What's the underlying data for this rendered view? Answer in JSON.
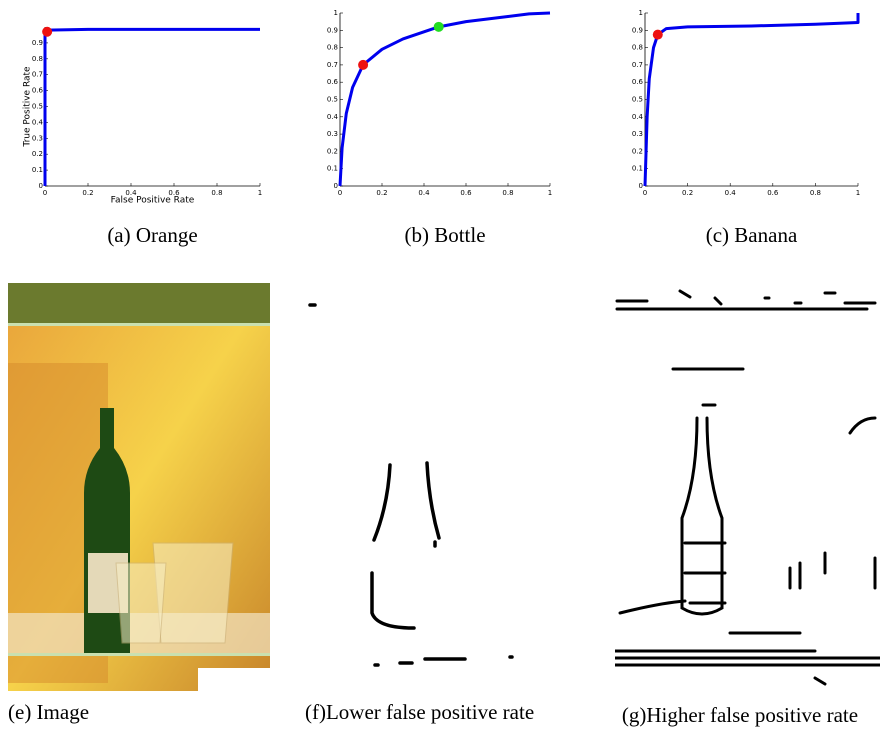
{
  "chart_data": [
    {
      "type": "line",
      "caption": "(a) Orange",
      "x_label": "False Positive Rate",
      "y_label": "True Positive Rate",
      "x": [
        0,
        0,
        0.01,
        0.2,
        0.5,
        0.8,
        1
      ],
      "series": [
        {
          "color": "#0000ee",
          "values": [
            0,
            0.97,
            0.98,
            0.985,
            0.985,
            0.985,
            0.985
          ]
        }
      ],
      "points": [
        {
          "x": 0.01,
          "y": 0.97,
          "color": "#ee1111"
        }
      ],
      "xlim": [
        0,
        1
      ],
      "ylim": [
        0,
        1
      ],
      "xticks": [
        0,
        0.2,
        0.4,
        0.6,
        0.8,
        1
      ],
      "yticks": [
        0,
        0.1,
        0.2,
        0.3,
        0.4,
        0.5,
        0.6,
        0.7,
        0.8,
        0.9
      ]
    },
    {
      "type": "line",
      "caption": "(b) Bottle",
      "x": [
        0,
        0.01,
        0.03,
        0.06,
        0.11,
        0.2,
        0.3,
        0.47,
        0.6,
        0.8,
        0.9,
        1
      ],
      "series": [
        {
          "color": "#0000ee",
          "values": [
            0,
            0.22,
            0.42,
            0.57,
            0.7,
            0.79,
            0.85,
            0.92,
            0.95,
            0.98,
            0.995,
            1
          ]
        }
      ],
      "points": [
        {
          "x": 0.11,
          "y": 0.7,
          "color": "#ee1111"
        },
        {
          "x": 0.47,
          "y": 0.92,
          "color": "#22dd22"
        }
      ],
      "xlim": [
        0,
        1
      ],
      "ylim": [
        0,
        1
      ],
      "xticks": [
        0,
        0.2,
        0.4,
        0.6,
        0.8,
        1
      ],
      "yticks": [
        0,
        0.1,
        0.2,
        0.3,
        0.4,
        0.5,
        0.6,
        0.7,
        0.8,
        0.9,
        1
      ]
    },
    {
      "type": "line",
      "caption": "(c) Banana",
      "x": [
        0,
        0.01,
        0.02,
        0.04,
        0.06,
        0.1,
        0.2,
        0.5,
        0.8,
        1,
        1
      ],
      "series": [
        {
          "color": "#0000ee",
          "values": [
            0,
            0.4,
            0.62,
            0.8,
            0.875,
            0.91,
            0.92,
            0.925,
            0.935,
            0.945,
            1
          ]
        }
      ],
      "points": [
        {
          "x": 0.06,
          "y": 0.875,
          "color": "#ee1111"
        }
      ],
      "xlim": [
        0,
        1
      ],
      "ylim": [
        0,
        1
      ],
      "xticks": [
        0,
        0.2,
        0.4,
        0.6,
        0.8,
        1
      ],
      "yticks": [
        0,
        0.1,
        0.2,
        0.3,
        0.4,
        0.5,
        0.6,
        0.7,
        0.8,
        0.9,
        1
      ]
    }
  ],
  "figures": [
    {
      "caption": "(e) Image"
    },
    {
      "caption": "(f)Lower false positive rate"
    },
    {
      "caption": "(g)Higher false positive rate"
    }
  ]
}
